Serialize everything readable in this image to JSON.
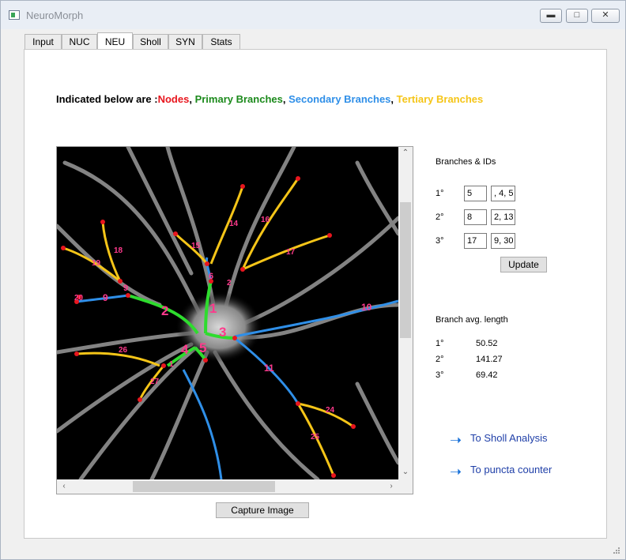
{
  "window": {
    "title": "NeuroMorph"
  },
  "tabs": [
    {
      "label": "Input"
    },
    {
      "label": "NUC"
    },
    {
      "label": "NEU",
      "active": true
    },
    {
      "label": "Sholl"
    },
    {
      "label": "SYN"
    },
    {
      "label": "Stats"
    }
  ],
  "legend": {
    "prefix": "Indicated below are :",
    "nodes": "Nodes",
    "primary": "Primary Branches",
    "secondary": "Secondary Branches",
    "tertiary": "Tertiary Branches",
    "sep": ", ",
    "colors": {
      "nodes": "#e8161e",
      "primary": "#1c8a1c",
      "secondary": "#2f8fe8",
      "tertiary": "#f5c518"
    }
  },
  "branch_labels": [
    "1",
    "2",
    "3",
    "4",
    "5",
    "6",
    "9",
    "11",
    "14",
    "15",
    "16",
    "17",
    "18",
    "19",
    "20",
    "24",
    "25",
    "26",
    "27",
    "1",
    "2",
    "9",
    "10"
  ],
  "branches_ids": {
    "title": "Branches & IDs",
    "rows": [
      {
        "label": "1°",
        "count": "5",
        "ids": ", 4, 5"
      },
      {
        "label": "2°",
        "count": "8",
        "ids": "2, 13"
      },
      {
        "label": "3°",
        "count": "17",
        "ids": "9, 30"
      }
    ],
    "update_label": "Update"
  },
  "avg_length": {
    "title": "Branch avg. length",
    "rows": [
      {
        "label": "1°",
        "value": "50.52"
      },
      {
        "label": "2°",
        "value": "141.27"
      },
      {
        "label": "3°",
        "value": "69.42"
      }
    ]
  },
  "capture_label": "Capture Image",
  "nav": {
    "sholl": "To Sholl Analysis",
    "puncta": "To puncta counter",
    "arrow_icon": "right-arrow-icon"
  }
}
